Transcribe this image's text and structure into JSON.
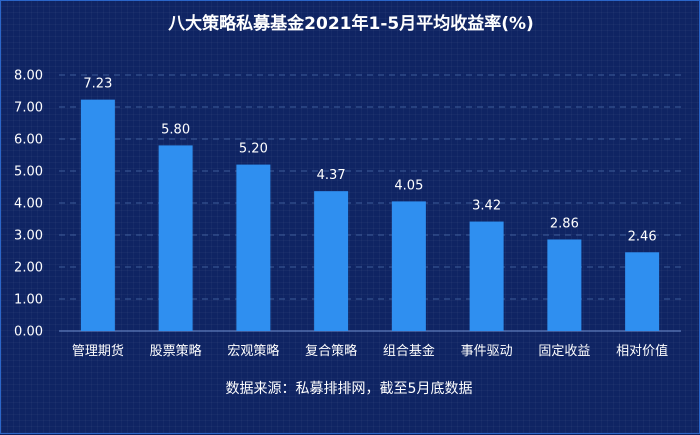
{
  "chart_data": {
    "type": "bar",
    "title": "八大策略私募基金2021年1-5月平均收益率(%)",
    "categories": [
      "管理期货",
      "股票策略",
      "宏观策略",
      "复合策略",
      "组合基金",
      "事件驱动",
      "固定收益",
      "相对价值"
    ],
    "values": [
      7.23,
      5.8,
      5.2,
      4.37,
      4.05,
      3.42,
      2.86,
      2.46
    ],
    "value_labels": [
      "7.23",
      "5.80",
      "5.20",
      "4.37",
      "4.05",
      "3.42",
      "2.86",
      "2.46"
    ],
    "ylim": [
      0,
      8
    ],
    "yticks": [
      "0.00",
      "1.00",
      "2.00",
      "3.00",
      "4.00",
      "5.00",
      "6.00",
      "7.00",
      "8.00"
    ],
    "xlabel": "",
    "ylabel": "",
    "grid": true,
    "source": "数据来源：私募排排网，截至5月底数据",
    "colors": {
      "bar": "#2f8ff0",
      "background": "#0f2463",
      "grid": "#4a6aa8",
      "text": "#ffffff"
    }
  }
}
